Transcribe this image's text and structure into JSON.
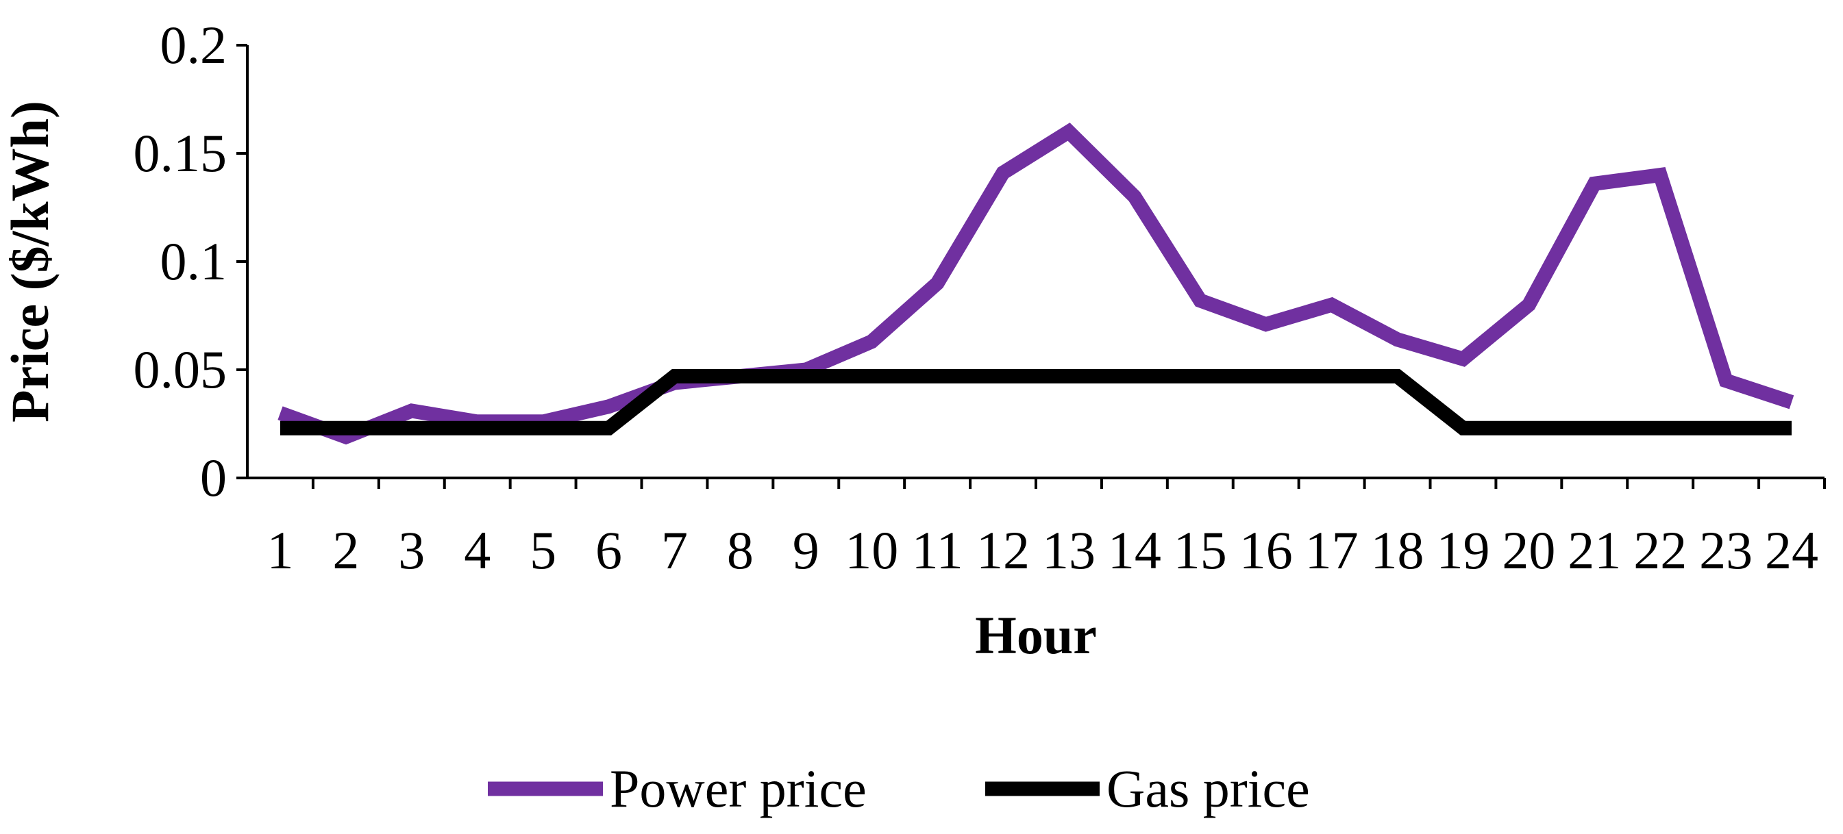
{
  "chart_data": {
    "type": "line",
    "title": "",
    "xlabel": "Hour",
    "ylabel": "Price ($/kWh)",
    "ylim": [
      0,
      0.2
    ],
    "yticks": [
      "0",
      "0.05",
      "0.1",
      "0.15",
      "0.2"
    ],
    "ytick_values": [
      0,
      0.05,
      0.1,
      0.15,
      0.2
    ],
    "categories": [
      "1",
      "2",
      "3",
      "4",
      "5",
      "6",
      "7",
      "8",
      "9",
      "10",
      "11",
      "12",
      "13",
      "14",
      "15",
      "16",
      "17",
      "18",
      "19",
      "20",
      "21",
      "22",
      "23",
      "24"
    ],
    "grid": false,
    "legend_position": "bottom",
    "series": [
      {
        "name": "Power price",
        "color": "#7030A0",
        "values": [
          0.03,
          0.019,
          0.031,
          0.026,
          0.026,
          0.033,
          0.044,
          0.047,
          0.05,
          0.063,
          0.09,
          0.141,
          0.16,
          0.13,
          0.082,
          0.071,
          0.08,
          0.064,
          0.055,
          0.08,
          0.136,
          0.14,
          0.045,
          0.035
        ]
      },
      {
        "name": "Gas price",
        "color": "#000000",
        "values": [
          0.023,
          0.023,
          0.023,
          0.023,
          0.023,
          0.023,
          0.047,
          0.047,
          0.047,
          0.047,
          0.047,
          0.047,
          0.047,
          0.047,
          0.047,
          0.047,
          0.047,
          0.047,
          0.023,
          0.023,
          0.023,
          0.023,
          0.023,
          0.023
        ]
      }
    ]
  }
}
